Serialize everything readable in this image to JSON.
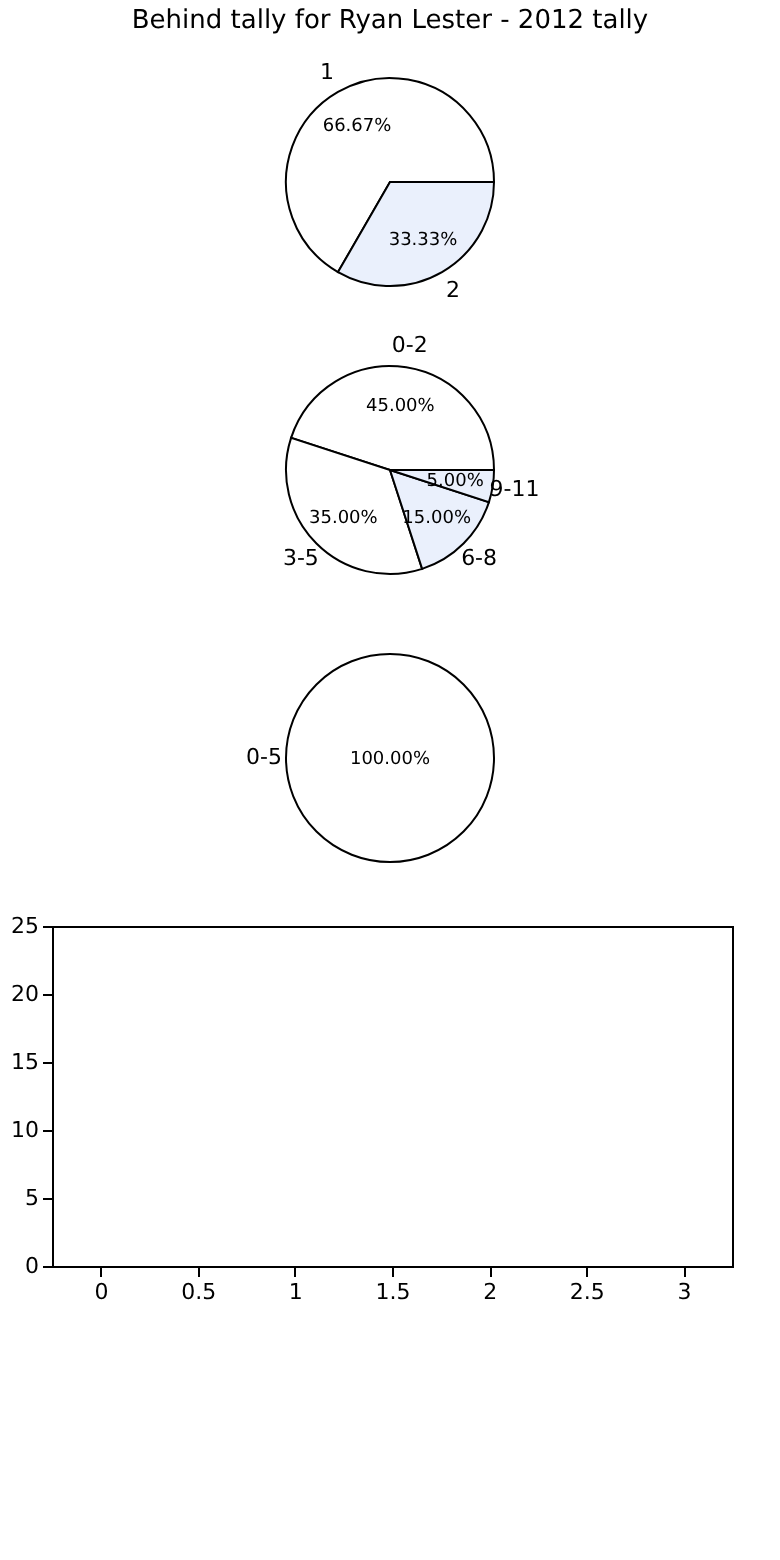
{
  "chart_data": [
    {
      "type": "pie",
      "title": "Behind tally for Ryan Lester - 2012 tally",
      "categories": [
        "1",
        "2"
      ],
      "values": [
        66.67,
        33.33
      ],
      "colors": [
        "#ffffff",
        "#eaf0fc"
      ],
      "value_labels": [
        "66.67%",
        "33.33%"
      ]
    },
    {
      "type": "pie",
      "categories": [
        "0-2",
        "3-5",
        "6-8",
        "9-11"
      ],
      "values": [
        45,
        35,
        15,
        5
      ],
      "colors": [
        "#ffffff",
        "#ffffff",
        "#eaf0fc",
        "#eaf0fc"
      ],
      "value_labels": [
        "45.00%",
        "35.00%",
        "15.00%",
        "5.00%"
      ]
    },
    {
      "type": "pie",
      "categories": [
        "0-5"
      ],
      "values": [
        100
      ],
      "colors": [
        "#ffffff"
      ],
      "value_labels": [
        "100.00%"
      ]
    },
    {
      "type": "scatter",
      "xlim": [
        -0.25,
        3.25
      ],
      "xticks": [
        0,
        0.5,
        1,
        1.5,
        2,
        2.5,
        3
      ],
      "ylim": [
        0,
        25
      ],
      "yticks": [
        0,
        5,
        10,
        15,
        20,
        25
      ]
    }
  ]
}
